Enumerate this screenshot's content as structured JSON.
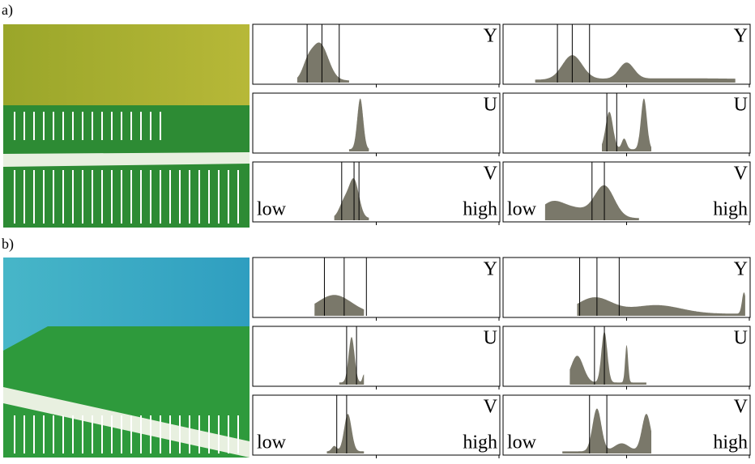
{
  "panels": [
    {
      "label": "a)"
    },
    {
      "label": "b)"
    }
  ],
  "channels": [
    "Y",
    "U",
    "V"
  ],
  "scale": {
    "low": "low",
    "high": "high"
  }
}
